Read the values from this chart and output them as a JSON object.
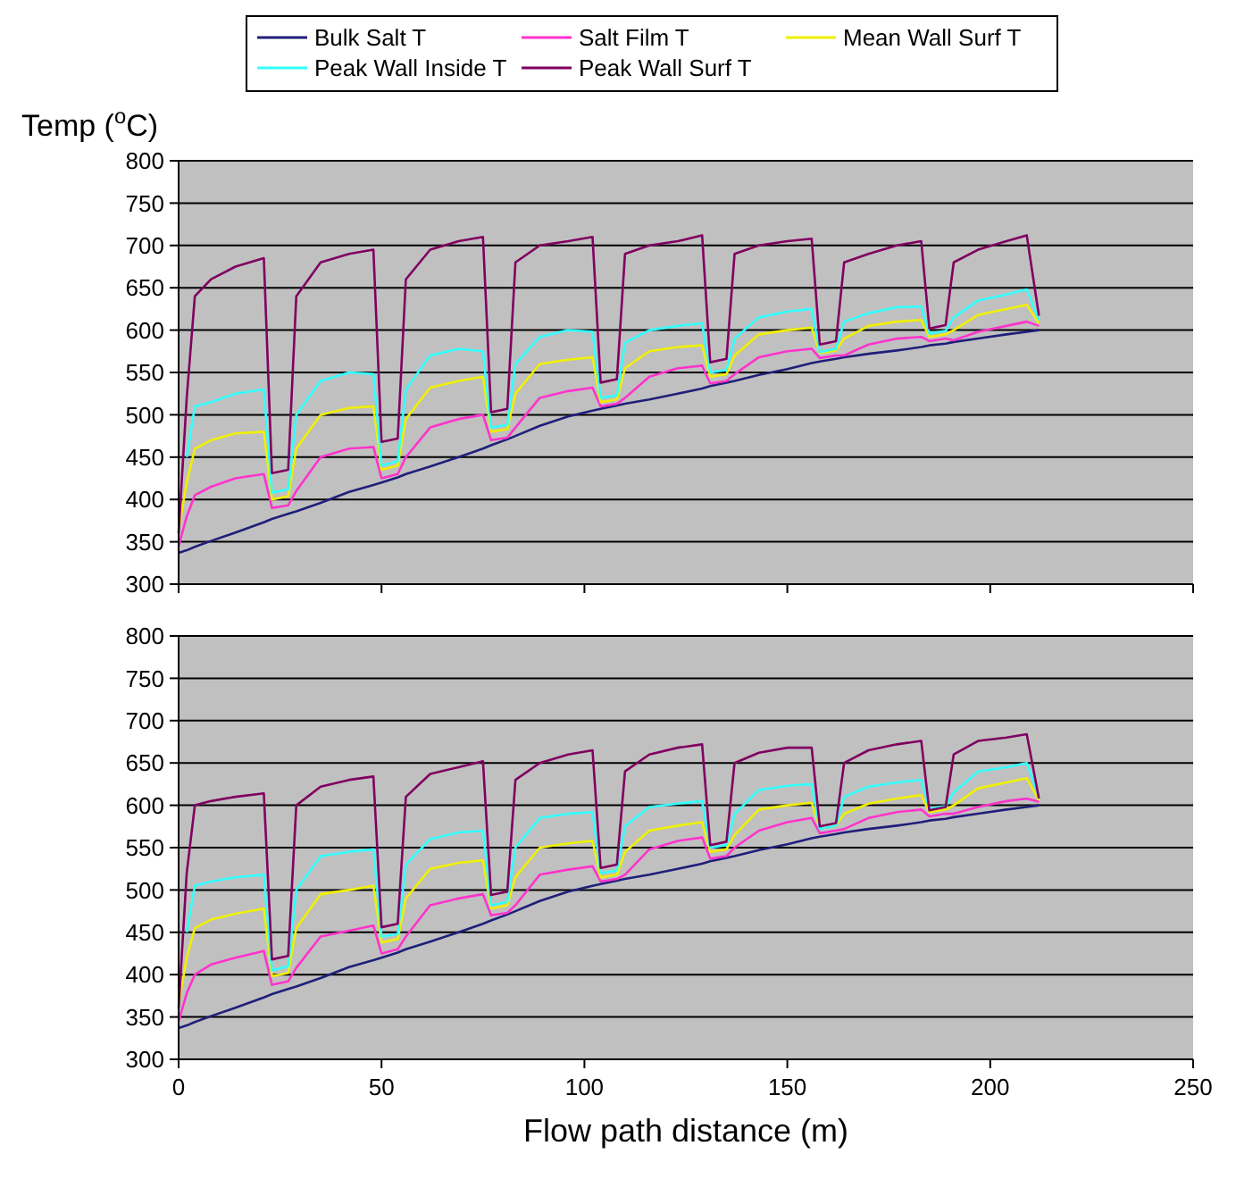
{
  "chart_data": [
    {
      "type": "line",
      "ylabel": "Temp ($^{o}$C)",
      "x": [
        0,
        2,
        4,
        8,
        14,
        21,
        23,
        27,
        29,
        35,
        42,
        48,
        50,
        54,
        56,
        62,
        69,
        75,
        77,
        81,
        83,
        89,
        96,
        102,
        104,
        108,
        110,
        116,
        123,
        129,
        131,
        135,
        137,
        143,
        150,
        156,
        158,
        162,
        164,
        170,
        177,
        183,
        185,
        189,
        191,
        197,
        204,
        209,
        212
      ],
      "xlim": [
        0,
        250
      ],
      "xticks": [
        0,
        50,
        100,
        150,
        200,
        250
      ],
      "ylim": [
        300,
        800
      ],
      "yticks": [
        300,
        350,
        400,
        450,
        500,
        550,
        600,
        650,
        700,
        750,
        800
      ],
      "grid": "y",
      "legend": "top",
      "tick_labels": "y",
      "marker": "none",
      "line_style": "solid",
      "series": [
        {
          "name": "Bulk Salt T",
          "color": "#1f1f7a",
          "values": [
            337,
            340,
            344,
            351,
            361,
            373,
            377,
            383,
            386,
            396,
            409,
            417,
            420,
            426,
            430,
            439,
            450,
            460,
            464,
            471,
            475,
            487,
            498,
            505,
            507,
            511,
            513,
            518,
            525,
            531,
            534,
            538,
            540,
            547,
            554,
            561,
            563,
            566,
            568,
            572,
            576,
            580,
            582,
            584,
            586,
            590,
            595,
            598,
            600
          ]
        },
        {
          "name": "Salt Film T",
          "color": "#ff33cc",
          "values": [
            345,
            380,
            405,
            415,
            425,
            430,
            390,
            393,
            410,
            450,
            460,
            462,
            425,
            430,
            450,
            485,
            495,
            500,
            470,
            473,
            485,
            520,
            528,
            532,
            510,
            513,
            520,
            545,
            555,
            558,
            537,
            540,
            548,
            568,
            575,
            578,
            567,
            570,
            570,
            583,
            590,
            592,
            587,
            590,
            588,
            598,
            605,
            610,
            605
          ]
        },
        {
          "name": "Mean Wall Surf T",
          "color": "#f0f000",
          "values": [
            365,
            420,
            460,
            470,
            478,
            480,
            400,
            404,
            460,
            500,
            508,
            510,
            435,
            440,
            495,
            532,
            540,
            545,
            480,
            483,
            525,
            560,
            565,
            568,
            515,
            518,
            555,
            575,
            580,
            582,
            545,
            548,
            570,
            595,
            600,
            603,
            573,
            576,
            590,
            605,
            610,
            612,
            592,
            595,
            600,
            618,
            625,
            630,
            608
          ]
        },
        {
          "name": "Peak Wall Inside T",
          "color": "#33ffff",
          "values": [
            null,
            450,
            510,
            515,
            525,
            530,
            408,
            412,
            500,
            540,
            550,
            548,
            440,
            445,
            530,
            570,
            578,
            575,
            485,
            488,
            560,
            592,
            600,
            598,
            520,
            523,
            585,
            600,
            605,
            608,
            550,
            553,
            590,
            615,
            622,
            625,
            574,
            578,
            610,
            620,
            627,
            628,
            596,
            599,
            615,
            635,
            642,
            648,
            612
          ]
        },
        {
          "name": "Peak Wall Surf T",
          "color": "#800060",
          "values": [
            360,
            520,
            640,
            660,
            675,
            685,
            431,
            435,
            640,
            680,
            690,
            695,
            468,
            472,
            660,
            695,
            705,
            710,
            503,
            507,
            680,
            700,
            705,
            710,
            538,
            542,
            690,
            700,
            705,
            712,
            562,
            566,
            690,
            700,
            705,
            708,
            583,
            587,
            680,
            690,
            700,
            705,
            602,
            606,
            680,
            695,
            705,
            712,
            617
          ]
        }
      ]
    },
    {
      "type": "line",
      "xlabel": "Flow path distance (m)",
      "x": [
        0,
        2,
        4,
        8,
        14,
        21,
        23,
        27,
        29,
        35,
        42,
        48,
        50,
        54,
        56,
        62,
        69,
        75,
        77,
        81,
        83,
        89,
        96,
        102,
        104,
        108,
        110,
        116,
        123,
        129,
        131,
        135,
        137,
        143,
        150,
        156,
        158,
        162,
        164,
        170,
        177,
        183,
        185,
        189,
        191,
        197,
        204,
        209,
        212
      ],
      "xlim": [
        0,
        250
      ],
      "xticks": [
        0,
        50,
        100,
        150,
        200,
        250
      ],
      "ylim": [
        300,
        800
      ],
      "yticks": [
        300,
        350,
        400,
        450,
        500,
        550,
        600,
        650,
        700,
        750,
        800
      ],
      "grid": "y",
      "marker": "none",
      "line_style": "solid",
      "series": [
        {
          "color": "#1f1f7a",
          "values": [
            337,
            340,
            344,
            351,
            361,
            373,
            377,
            383,
            386,
            396,
            409,
            417,
            420,
            426,
            430,
            439,
            450,
            460,
            464,
            471,
            475,
            487,
            498,
            505,
            507,
            511,
            513,
            518,
            525,
            531,
            534,
            538,
            540,
            547,
            554,
            561,
            563,
            566,
            568,
            572,
            576,
            580,
            582,
            584,
            586,
            590,
            595,
            598,
            600
          ]
        },
        {
          "color": "#ff33cc",
          "values": [
            345,
            378,
            400,
            412,
            420,
            428,
            388,
            392,
            408,
            445,
            452,
            458,
            425,
            430,
            445,
            482,
            490,
            495,
            470,
            473,
            482,
            518,
            524,
            528,
            510,
            513,
            518,
            548,
            558,
            562,
            537,
            540,
            550,
            570,
            580,
            585,
            567,
            570,
            572,
            585,
            592,
            595,
            587,
            590,
            590,
            598,
            605,
            608,
            604
          ]
        },
        {
          "color": "#f0f000",
          "values": [
            365,
            420,
            455,
            465,
            472,
            478,
            398,
            402,
            455,
            495,
            500,
            505,
            438,
            442,
            490,
            525,
            532,
            535,
            478,
            482,
            515,
            550,
            555,
            558,
            515,
            518,
            545,
            570,
            576,
            580,
            545,
            548,
            565,
            595,
            600,
            603,
            573,
            576,
            590,
            602,
            608,
            612,
            592,
            595,
            600,
            620,
            627,
            632,
            606
          ]
        },
        {
          "color": "#33ffff",
          "values": [
            null,
            450,
            505,
            510,
            515,
            518,
            405,
            410,
            500,
            540,
            545,
            548,
            445,
            448,
            530,
            560,
            568,
            570,
            482,
            486,
            550,
            585,
            590,
            592,
            520,
            523,
            575,
            598,
            602,
            605,
            550,
            553,
            590,
            618,
            623,
            625,
            572,
            576,
            610,
            622,
            627,
            630,
            596,
            599,
            615,
            640,
            645,
            650,
            610
          ]
        },
        {
          "color": "#800060",
          "values": [
            360,
            520,
            600,
            605,
            610,
            614,
            418,
            422,
            600,
            622,
            630,
            634,
            456,
            460,
            610,
            637,
            645,
            652,
            494,
            498,
            630,
            650,
            660,
            665,
            526,
            530,
            640,
            660,
            668,
            672,
            553,
            557,
            650,
            662,
            668,
            668,
            575,
            579,
            650,
            665,
            672,
            676,
            594,
            598,
            660,
            676,
            680,
            684,
            608
          ]
        }
      ]
    }
  ]
}
